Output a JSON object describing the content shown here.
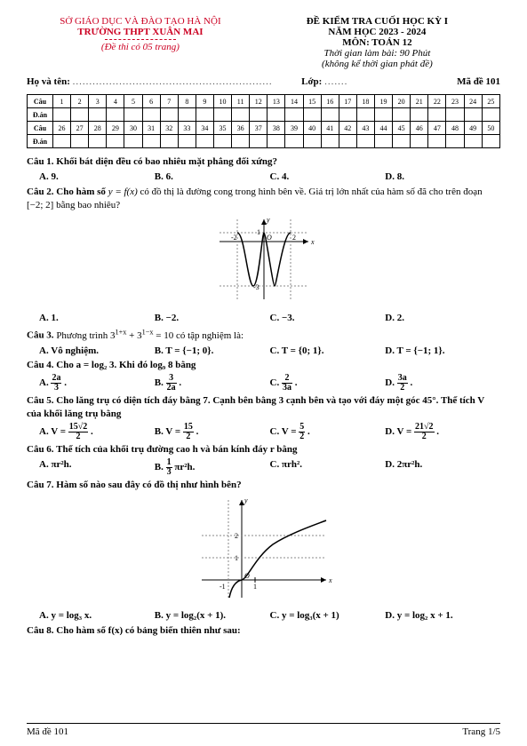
{
  "header": {
    "dept": "SỞ GIÁO DỤC VÀ ĐÀO TẠO HÀ NỘI",
    "school": "TRƯỜNG THPT XUÂN MAI",
    "pages_note": "(Đề thi có 05 trang)",
    "title": "ĐỀ KIỂM TRA CUỐI HỌC KỲ I",
    "year": "NĂM HỌC 2023 - 2024",
    "subject": "MÔN: TOÁN 12",
    "time": "Thời gian làm bài: 90 Phút",
    "time_note": "(không kể thời gian phát đề)"
  },
  "info": {
    "name_label": "Họ và tên: ",
    "class_label": "Lớp: ",
    "code_label": "Mã đề 101"
  },
  "answer_table": {
    "row_labels": [
      "Câu",
      "Đ.án",
      "Câu",
      "Đ.án"
    ],
    "cols_top": [
      "1",
      "2",
      "3",
      "4",
      "5",
      "6",
      "7",
      "8",
      "9",
      "10",
      "11",
      "12",
      "13",
      "14",
      "15",
      "16",
      "17",
      "18",
      "19",
      "20",
      "21",
      "22",
      "23",
      "24",
      "25"
    ],
    "cols_bot": [
      "26",
      "27",
      "28",
      "29",
      "30",
      "31",
      "32",
      "33",
      "34",
      "35",
      "36",
      "37",
      "38",
      "39",
      "40",
      "41",
      "42",
      "43",
      "44",
      "45",
      "46",
      "47",
      "48",
      "49",
      "50"
    ]
  },
  "q1": {
    "text": "Câu 1. Khối bát diện đều có bao nhiêu mặt phẳng đối xứng?",
    "A": "A. 9.",
    "B": "B. 6.",
    "C": "C. 4.",
    "D": "D. 8."
  },
  "q2": {
    "text_a": "Câu 2. Cho hàm số ",
    "text_b": " có đồ thị là đường cong trong hình bên về. Giá trị lớn nhất của hàm số đã cho trên đoạn [−2; 2] bằng bao nhiêu?",
    "A": "A. 1.",
    "B": "B. −2.",
    "C": "C. −3.",
    "D": "D. 2.",
    "graph": {
      "width": 120,
      "height": 100,
      "curve_color": "#000",
      "grid_color": "#888",
      "x_ticks_at": [
        -2,
        2
      ],
      "y_marks": [
        1,
        -3
      ],
      "bg": "#fff"
    }
  },
  "q3": {
    "text": "Câu 3. Phương trình 3^{1+x} + 3^{1−x} = 10 có tập nghiệm là:",
    "A": "A. Vô nghiệm.",
    "B": "B. T = {−1; 0}.",
    "C": "C. T = {0; 1}.",
    "D": "D. T = {−1; 1}."
  },
  "q4": {
    "text": "Câu 4. Cho a = log₂ 3. Khi đó log₉ 8 bằng",
    "A_n": "2a",
    "A_d": "3",
    "B_n": "3",
    "B_d": "2a",
    "C_n": "2",
    "C_d": "3a",
    "D_n": "3a",
    "D_d": "2"
  },
  "q5": {
    "text": "Câu 5. Cho lăng trụ có diện tích đáy bằng 7. Cạnh bên bằng 3 cạnh bên và tạo với đáy một góc 45°. Thể tích V của khối lăng trụ bằng",
    "A_label": "A. V = ",
    "A_n": "15√2",
    "A_d": "2",
    "B_label": "B. V = ",
    "B_n": "15",
    "B_d": "2",
    "C_label": "C. V = ",
    "C_n": "5",
    "C_d": "2",
    "D_label": "D. V = ",
    "D_n": "21√2",
    "D_d": "2"
  },
  "q6": {
    "text": "Câu 6. Thể tích của khối trụ đường cao h và bán kính đáy r bằng",
    "A": "A. πr²h.",
    "B_label": "B. ",
    "B_n": "1",
    "B_d": "3",
    "B_rest": " πr²h.",
    "C": "C. πrh².",
    "D": "D. 2πr²h."
  },
  "q7": {
    "text": "Câu 7. Hàm số nào sau đây có đồ thị như hình bên?",
    "A": "A. y = log₃ x.",
    "B": "B. y = log₂(x + 1).",
    "C": "C. y = log₃(x + 1)",
    "D": "D. y = log₂ x + 1.",
    "graph": {
      "width": 160,
      "height": 120,
      "curve_color": "#000",
      "grid_color": "#888",
      "y_marks": [
        1,
        2
      ],
      "x_marks": [
        1
      ],
      "asymptote_x": -1
    }
  },
  "q8": {
    "text": "Câu 8. Cho hàm số f(x) có bảng biến thiên như sau:"
  },
  "footer": {
    "left": "Mã đề 101",
    "right": "Trang 1/5"
  }
}
